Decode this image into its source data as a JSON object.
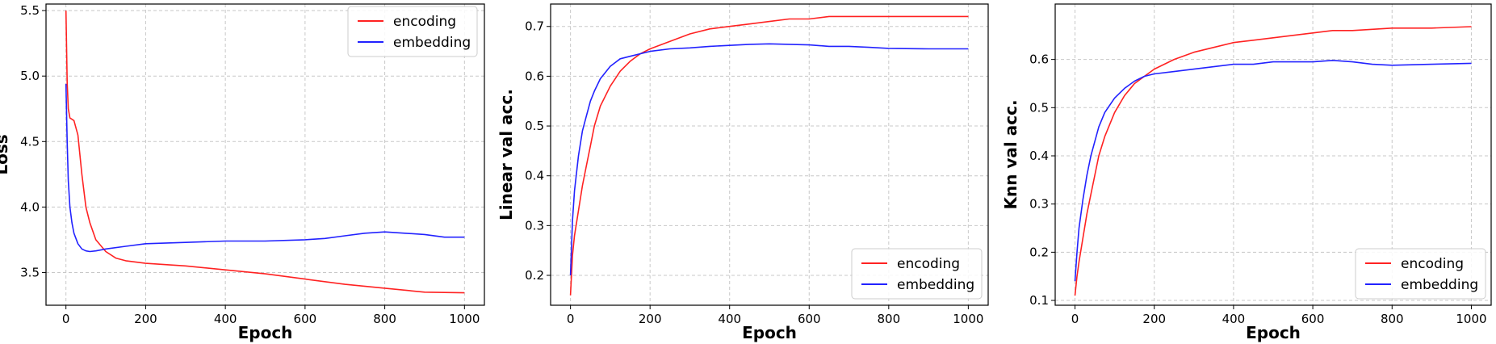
{
  "colors": {
    "encoding": "#ff2222",
    "embedding": "#2222ff"
  },
  "chart_data": [
    {
      "type": "line",
      "xlabel": "Epoch",
      "ylabel": "Loss",
      "xlim": [
        -50,
        1050
      ],
      "ylim": [
        3.25,
        5.55
      ],
      "xticks": [
        0,
        200,
        400,
        600,
        800,
        1000
      ],
      "yticks": [
        3.5,
        4.0,
        4.5,
        5.0,
        5.5
      ],
      "ytick_labels": [
        "3.5",
        "4.0",
        "4.5",
        "5.0",
        "5.5"
      ],
      "grid": true,
      "legend": "top-right",
      "series": [
        {
          "name": "encoding",
          "color": "#ff2222",
          "x": [
            0,
            3,
            6,
            10,
            20,
            30,
            40,
            50,
            60,
            75,
            100,
            125,
            150,
            200,
            300,
            400,
            500,
            600,
            700,
            800,
            900,
            1000
          ],
          "y": [
            5.5,
            4.95,
            4.75,
            4.68,
            4.66,
            4.55,
            4.25,
            4.0,
            3.88,
            3.75,
            3.66,
            3.61,
            3.59,
            3.57,
            3.55,
            3.52,
            3.49,
            3.45,
            3.41,
            3.38,
            3.35,
            3.345
          ]
        },
        {
          "name": "embedding",
          "color": "#2222ff",
          "x": [
            0,
            3,
            6,
            10,
            15,
            20,
            30,
            40,
            50,
            60,
            75,
            100,
            150,
            200,
            300,
            400,
            500,
            600,
            650,
            700,
            750,
            800,
            850,
            900,
            950,
            1000
          ],
          "y": [
            4.94,
            4.5,
            4.2,
            4.0,
            3.88,
            3.8,
            3.72,
            3.68,
            3.665,
            3.66,
            3.665,
            3.68,
            3.7,
            3.72,
            3.73,
            3.74,
            3.74,
            3.75,
            3.76,
            3.78,
            3.8,
            3.81,
            3.8,
            3.79,
            3.77,
            3.77
          ]
        }
      ]
    },
    {
      "type": "line",
      "xlabel": "Epoch",
      "ylabel": "Linear val acc.",
      "xlim": [
        -50,
        1050
      ],
      "ylim": [
        0.14,
        0.745
      ],
      "xticks": [
        0,
        200,
        400,
        600,
        800,
        1000
      ],
      "yticks": [
        0.2,
        0.3,
        0.4,
        0.5,
        0.6,
        0.7
      ],
      "ytick_labels": [
        "0.2",
        "0.3",
        "0.4",
        "0.5",
        "0.6",
        "0.7"
      ],
      "grid": true,
      "legend": "bottom-right",
      "series": [
        {
          "name": "encoding",
          "color": "#ff2222",
          "x": [
            0,
            5,
            10,
            20,
            30,
            40,
            50,
            60,
            75,
            100,
            125,
            150,
            175,
            200,
            250,
            300,
            350,
            400,
            450,
            500,
            550,
            600,
            650,
            700,
            800,
            900,
            1000
          ],
          "y": [
            0.16,
            0.24,
            0.28,
            0.33,
            0.38,
            0.42,
            0.46,
            0.5,
            0.54,
            0.58,
            0.61,
            0.63,
            0.645,
            0.655,
            0.67,
            0.685,
            0.695,
            0.7,
            0.705,
            0.71,
            0.715,
            0.715,
            0.72,
            0.72,
            0.72,
            0.72,
            0.72
          ]
        },
        {
          "name": "embedding",
          "color": "#2222ff",
          "x": [
            0,
            5,
            10,
            20,
            30,
            40,
            50,
            60,
            75,
            100,
            125,
            150,
            200,
            250,
            300,
            350,
            400,
            450,
            500,
            550,
            600,
            650,
            700,
            750,
            800,
            900,
            1000
          ],
          "y": [
            0.2,
            0.31,
            0.37,
            0.44,
            0.49,
            0.52,
            0.55,
            0.57,
            0.595,
            0.62,
            0.635,
            0.64,
            0.65,
            0.655,
            0.657,
            0.66,
            0.662,
            0.664,
            0.665,
            0.664,
            0.663,
            0.66,
            0.66,
            0.658,
            0.656,
            0.655,
            0.655
          ]
        }
      ]
    },
    {
      "type": "line",
      "xlabel": "Epoch",
      "ylabel": "Knn val acc.",
      "xlim": [
        -50,
        1050
      ],
      "ylim": [
        0.09,
        0.715
      ],
      "xticks": [
        0,
        200,
        400,
        600,
        800,
        1000
      ],
      "yticks": [
        0.1,
        0.2,
        0.3,
        0.4,
        0.5,
        0.6
      ],
      "ytick_labels": [
        "0.1",
        "0.2",
        "0.3",
        "0.4",
        "0.5",
        "0.6"
      ],
      "grid": true,
      "legend": "bottom-right",
      "series": [
        {
          "name": "encoding",
          "color": "#ff2222",
          "x": [
            0,
            5,
            10,
            20,
            30,
            40,
            50,
            60,
            75,
            100,
            125,
            150,
            175,
            200,
            250,
            300,
            350,
            400,
            450,
            500,
            550,
            600,
            650,
            700,
            800,
            900,
            1000
          ],
          "y": [
            0.11,
            0.15,
            0.18,
            0.23,
            0.28,
            0.32,
            0.36,
            0.4,
            0.44,
            0.49,
            0.525,
            0.55,
            0.565,
            0.58,
            0.6,
            0.615,
            0.625,
            0.635,
            0.64,
            0.645,
            0.65,
            0.655,
            0.66,
            0.66,
            0.665,
            0.665,
            0.668
          ]
        },
        {
          "name": "embedding",
          "color": "#2222ff",
          "x": [
            0,
            5,
            10,
            20,
            30,
            40,
            50,
            60,
            75,
            100,
            125,
            150,
            175,
            200,
            250,
            300,
            350,
            400,
            450,
            500,
            550,
            600,
            650,
            700,
            750,
            800,
            900,
            1000
          ],
          "y": [
            0.14,
            0.2,
            0.25,
            0.31,
            0.36,
            0.4,
            0.43,
            0.46,
            0.49,
            0.52,
            0.54,
            0.555,
            0.565,
            0.57,
            0.575,
            0.58,
            0.585,
            0.59,
            0.59,
            0.595,
            0.595,
            0.595,
            0.598,
            0.595,
            0.59,
            0.588,
            0.59,
            0.592
          ]
        }
      ]
    }
  ]
}
